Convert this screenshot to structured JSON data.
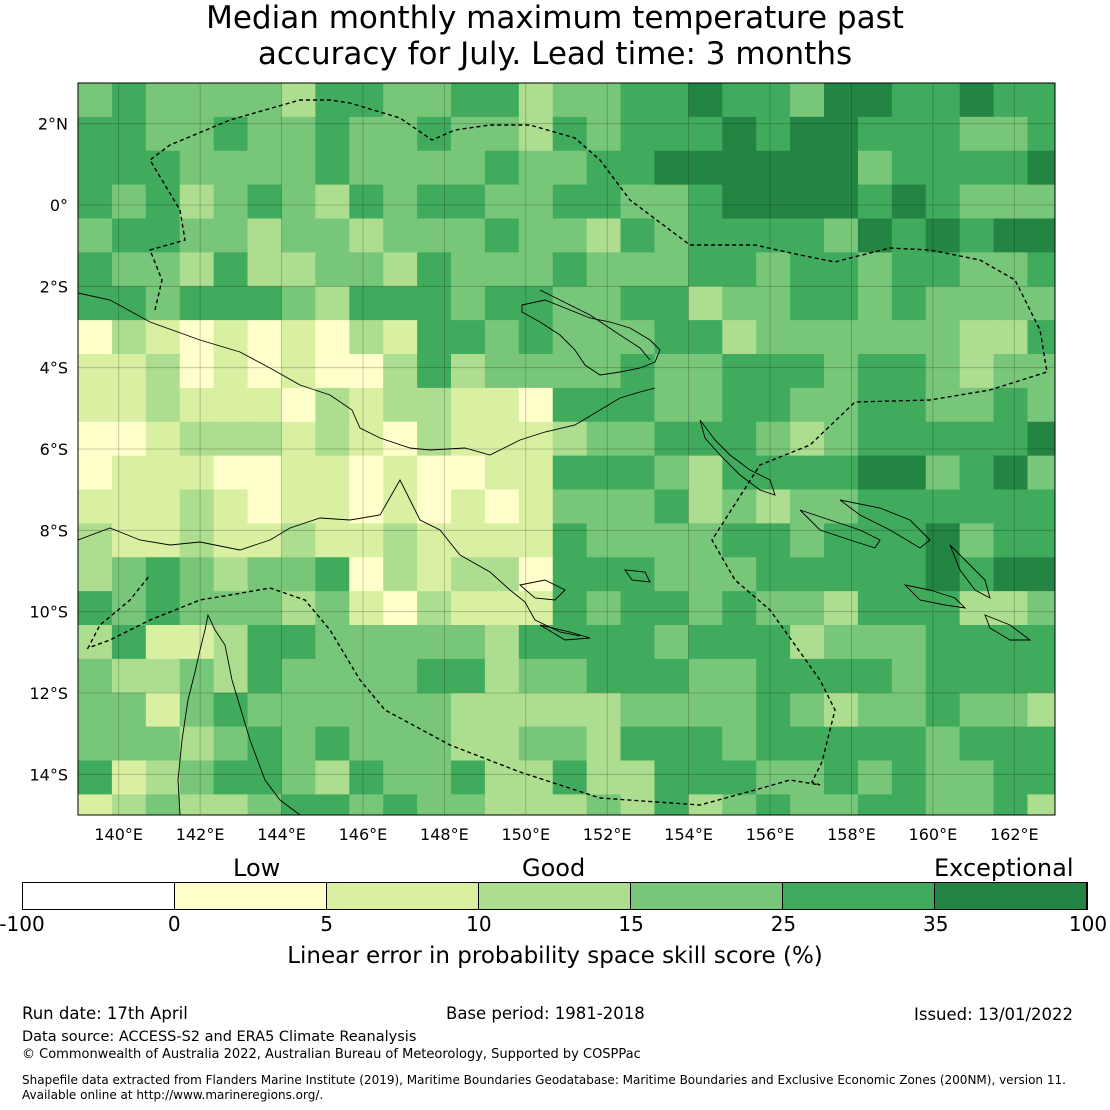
{
  "title": {
    "line1": "Median monthly maximum temperature past",
    "line2": "accuracy for July. Lead time: 3 months"
  },
  "map": {
    "lon_ticks": [
      "140°E",
      "142°E",
      "144°E",
      "146°E",
      "148°E",
      "150°E",
      "152°E",
      "154°E",
      "156°E",
      "158°E",
      "160°E",
      "162°E"
    ],
    "lat_ticks": [
      "2°N",
      "0°",
      "2°S",
      "4°S",
      "6°S",
      "8°S",
      "10°S",
      "12°S",
      "14°S"
    ],
    "lon_range": [
      139,
      163
    ],
    "lat_range": [
      -15,
      3
    ]
  },
  "colorbar": {
    "categories": [
      "Low",
      "Good",
      "Exceptional"
    ],
    "ticks": [
      "-100",
      "0",
      "5",
      "10",
      "15",
      "25",
      "35",
      "100"
    ],
    "colors": [
      "#ffffff",
      "#ffffcc",
      "#d9f0a3",
      "#addd8e",
      "#78c679",
      "#41ab5d",
      "#238443"
    ],
    "label": "Linear error in probability space skill score (%)"
  },
  "footer": {
    "run_date": "Run date: 17th April",
    "base_period": "Base period: 1981-2018",
    "issued": "Issued: 13/01/2022",
    "data_source": "Data source: ACCESS-S2 and ERA5 Climate Reanalysis",
    "copyright": "© Commonwealth of Australia 2022, Australian Bureau of Meteorology, Supported by COSPPac",
    "shapefile1": "Shapefile data extracted from Flanders Marine Institute (2019), Maritime Boundaries Geodatabase: Maritime Boundaries and Exclusive Economic Zones (200NM), version 11.",
    "shapefile2": "Available online at http://www.marineregions.org/."
  }
}
